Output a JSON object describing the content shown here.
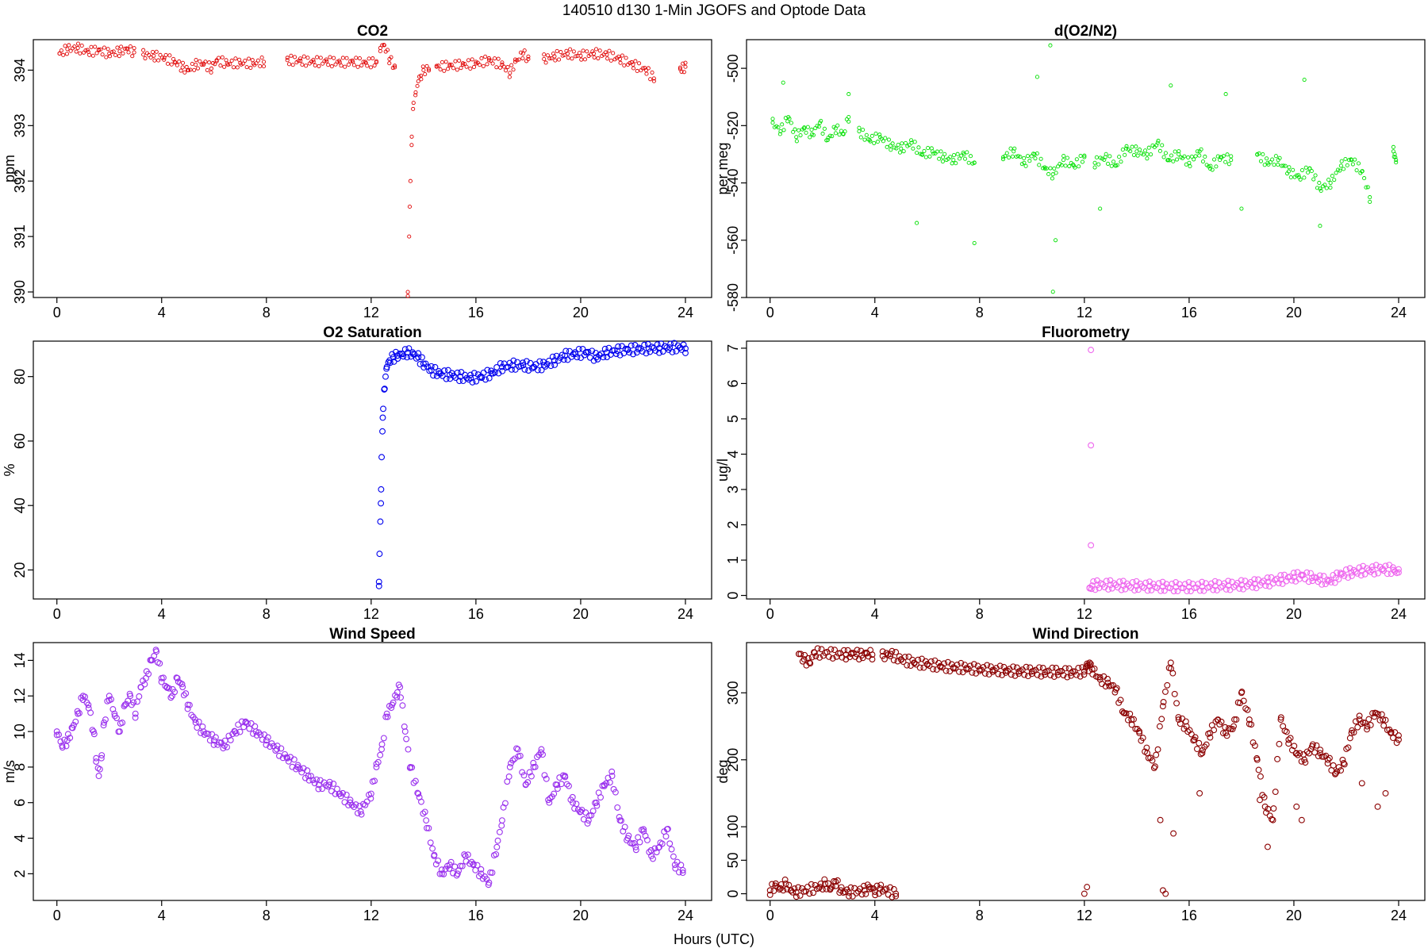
{
  "figure": {
    "title": "140510   d130   1-Min  JGOFS and Optode Data",
    "xlabel": "Hours (UTC)"
  },
  "chart_data": [
    {
      "type": "scatter",
      "title": "CO2",
      "xlabel": "",
      "ylabel": "ppm",
      "xlim": [
        -0.9,
        25
      ],
      "ylim": [
        389.9,
        394.55
      ],
      "xticks": [
        0,
        4,
        8,
        12,
        16,
        20,
        24
      ],
      "yticks": [
        390,
        391,
        392,
        393,
        394
      ],
      "color": "#e00000",
      "marker_size": "small",
      "grid": false,
      "segments": [
        {
          "x": [
            0.1,
            0.4,
            0.8,
            1.2,
            1.6,
            2.0,
            2.4,
            2.7,
            2.95
          ],
          "y": [
            394.3,
            394.38,
            394.4,
            394.33,
            394.36,
            394.3,
            394.34,
            394.38,
            394.32
          ]
        },
        {
          "x": [
            3.3,
            3.7,
            4.1,
            4.5,
            4.8,
            5.0,
            5.3,
            5.6,
            5.9,
            6.1,
            6.5,
            7.0,
            7.5,
            7.9
          ],
          "y": [
            394.28,
            394.26,
            394.22,
            394.15,
            394.05,
            394.0,
            394.1,
            394.12,
            394.03,
            394.18,
            394.12,
            394.13,
            394.12,
            394.15
          ]
        },
        {
          "x": [
            8.8,
            9.3,
            9.8,
            10.3,
            10.8,
            11.3,
            11.8,
            12.2
          ],
          "y": [
            394.18,
            394.17,
            394.15,
            394.16,
            394.14,
            394.15,
            394.13,
            394.14
          ]
        },
        {
          "x": [
            12.35,
            12.5,
            12.7,
            12.9
          ],
          "y": [
            394.4,
            394.45,
            394.2,
            394.05
          ]
        },
        {
          "x": [
            13.4,
            13.45,
            13.5,
            13.55,
            13.6,
            13.7,
            13.8,
            13.9,
            14.0,
            14.2
          ],
          "y": [
            390.0,
            391.0,
            392.0,
            392.8,
            393.3,
            393.6,
            393.8,
            393.9,
            394.0,
            394.02
          ]
        },
        {
          "x": [
            14.5,
            15.0,
            15.5,
            16.0,
            16.5,
            17.0,
            17.3,
            17.5,
            17.8,
            18.0
          ],
          "y": [
            394.06,
            394.08,
            394.1,
            394.12,
            394.18,
            394.1,
            393.95,
            394.15,
            394.3,
            394.2
          ]
        },
        {
          "x": [
            18.6,
            19.0,
            19.5,
            20.0,
            20.5,
            21.0,
            21.5,
            22.0,
            22.5,
            22.8
          ],
          "y": [
            394.2,
            394.25,
            394.3,
            394.26,
            394.3,
            394.28,
            394.2,
            394.1,
            394.0,
            393.85
          ]
        },
        {
          "x": [
            23.8,
            24.0
          ],
          "y": [
            394.02,
            394.06
          ]
        }
      ]
    },
    {
      "type": "scatter",
      "title": "d(O2/N2)",
      "xlabel": "",
      "ylabel": "per meg",
      "xlim": [
        -0.9,
        25
      ],
      "ylim": [
        -580,
        -490
      ],
      "xticks": [
        0,
        4,
        8,
        12,
        16,
        20,
        24
      ],
      "yticks": [
        -580,
        -560,
        -540,
        -520,
        -500
      ],
      "color": "#00e000",
      "marker_size": "small",
      "grid": false,
      "segments": [
        {
          "x": [
            0.1,
            0.4,
            0.7,
            1.0,
            1.3,
            1.6,
            1.9,
            2.2,
            2.5,
            2.8,
            3.0
          ],
          "y": [
            -519,
            -522,
            -517,
            -524,
            -521,
            -523,
            -519,
            -525,
            -521,
            -523,
            -517
          ]
        },
        {
          "x": [
            3.4,
            3.8,
            4.2,
            4.6,
            5.0,
            5.4,
            5.8,
            6.2,
            6.6,
            7.0,
            7.4,
            7.8
          ],
          "y": [
            -522,
            -525,
            -524,
            -527,
            -528,
            -526,
            -530,
            -529,
            -531,
            -532,
            -530,
            -533
          ]
        },
        {
          "x": [
            8.9,
            9.3,
            9.7,
            10.1,
            10.5,
            10.8,
            11.2,
            11.6,
            12.0
          ],
          "y": [
            -531,
            -529,
            -533,
            -530,
            -535,
            -537,
            -532,
            -534,
            -531
          ]
        },
        {
          "x": [
            12.4,
            12.8,
            13.2,
            13.6,
            14.0,
            14.4,
            14.8,
            15.2,
            15.6,
            16.0,
            16.4,
            16.8,
            17.2,
            17.6
          ],
          "y": [
            -533,
            -531,
            -534,
            -528,
            -529,
            -530,
            -526,
            -532,
            -530,
            -533,
            -529,
            -535,
            -531,
            -532
          ]
        },
        {
          "x": [
            18.6,
            19.0,
            19.4,
            19.8,
            20.2,
            20.6,
            21.0,
            21.4,
            21.8,
            22.2,
            22.6,
            22.9
          ],
          "y": [
            -530,
            -533,
            -532,
            -536,
            -538,
            -535,
            -542,
            -540,
            -534,
            -532,
            -536,
            -545
          ]
        },
        {
          "x": [
            23.8,
            23.9
          ],
          "y": [
            -529,
            -532
          ]
        }
      ],
      "outliers": {
        "x": [
          0.5,
          3.0,
          5.6,
          7.8,
          10.2,
          10.7,
          10.8,
          10.9,
          12.6,
          15.3,
          17.4,
          18.0,
          20.4,
          21.0
        ],
        "y": [
          -505,
          -509,
          -554,
          -561,
          -503,
          -492,
          -578,
          -560,
          -549,
          -506,
          -509,
          -549,
          -504,
          -555
        ]
      }
    },
    {
      "type": "scatter",
      "title": "O2 Saturation",
      "xlabel": "",
      "ylabel": "%",
      "xlim": [
        -0.9,
        25
      ],
      "ylim": [
        11,
        91
      ],
      "xticks": [
        0,
        4,
        8,
        12,
        16,
        20,
        24
      ],
      "yticks": [
        20,
        40,
        60,
        80
      ],
      "color": "#0000ee",
      "marker_size": "large",
      "grid": false,
      "segments": [
        {
          "x": [
            12.3,
            12.32,
            12.35,
            12.38,
            12.4,
            12.43,
            12.46,
            12.5,
            12.55,
            12.6,
            12.7,
            12.85,
            13.0,
            13.2,
            13.4,
            13.6,
            13.8,
            14.0,
            14.3,
            14.6,
            15.0,
            15.4,
            15.8,
            16.2,
            16.6,
            17.0,
            17.4,
            17.8,
            18.2,
            18.6,
            19.0,
            19.4,
            19.8,
            20.2,
            20.6,
            21.0,
            21.4,
            21.8,
            22.2,
            22.6,
            23.0,
            23.4,
            23.8,
            24.0
          ],
          "y": [
            15,
            25,
            35,
            45,
            55,
            63,
            70,
            76,
            80,
            83,
            85,
            86,
            86.5,
            87,
            87.5,
            87,
            86,
            84,
            82,
            81,
            80.5,
            80,
            79.5,
            80,
            81,
            83,
            83.5,
            83.5,
            83,
            83.5,
            85,
            86.5,
            87,
            87.5,
            86,
            87.5,
            88,
            88.3,
            88.5,
            88.7,
            88.8,
            89,
            89,
            88.7
          ]
        }
      ]
    },
    {
      "type": "scatter",
      "title": "Fluorometry",
      "xlabel": "",
      "ylabel": "ug/l",
      "xlim": [
        -0.9,
        25
      ],
      "ylim": [
        -0.1,
        7.2
      ],
      "xticks": [
        0,
        4,
        8,
        12,
        16,
        20,
        24
      ],
      "yticks": [
        0,
        1,
        2,
        3,
        4,
        5,
        6,
        7
      ],
      "color": "#ee66ee",
      "marker_size": "large",
      "grid": false,
      "segments": [
        {
          "x": [
            12.2,
            12.3,
            12.5,
            13.0,
            13.5,
            14.0,
            14.5,
            15.0,
            15.5,
            16.0,
            16.5,
            17.0,
            17.5,
            18.0,
            18.5,
            19.0,
            19.5,
            20.0,
            20.3,
            20.7,
            21.0,
            21.3,
            21.6,
            21.8,
            22.2,
            22.6,
            23.0,
            23.4,
            23.8,
            24.0
          ],
          "y": [
            0.2,
            0.28,
            0.3,
            0.3,
            0.28,
            0.27,
            0.26,
            0.25,
            0.24,
            0.24,
            0.25,
            0.27,
            0.28,
            0.3,
            0.33,
            0.38,
            0.45,
            0.52,
            0.56,
            0.5,
            0.45,
            0.4,
            0.5,
            0.6,
            0.65,
            0.7,
            0.72,
            0.75,
            0.72,
            0.65
          ]
        }
      ],
      "outliers": {
        "x": [
          12.25,
          12.25,
          12.25
        ],
        "y": [
          6.95,
          4.25,
          1.42
        ]
      }
    },
    {
      "type": "scatter",
      "title": "Wind Speed",
      "xlabel": "",
      "ylabel": "m/s",
      "xlim": [
        -0.9,
        25
      ],
      "ylim": [
        0.5,
        15
      ],
      "xticks": [
        0,
        4,
        8,
        12,
        16,
        20,
        24
      ],
      "yticks": [
        2,
        4,
        6,
        8,
        10,
        12,
        14
      ],
      "color": "#9a30ee",
      "marker_size": "large",
      "grid": false,
      "segments": [
        {
          "x": [
            0.0,
            0.2,
            0.4,
            0.6,
            0.8,
            1.0,
            1.2,
            1.4,
            1.5,
            1.6,
            1.7,
            1.8,
            2.0,
            2.2,
            2.4,
            2.6,
            2.8,
            3.0,
            3.2,
            3.4,
            3.6,
            3.8,
            4.0,
            4.2,
            4.4,
            4.6,
            4.8,
            5.0,
            5.3,
            5.6,
            6.0,
            6.4,
            6.8,
            7.2,
            7.6,
            8.0,
            8.4,
            8.8,
            9.2,
            9.6,
            10.0,
            10.4,
            10.8,
            11.2,
            11.6,
            12.0,
            12.2,
            12.4,
            12.6,
            12.8,
            13.0,
            13.1,
            13.3,
            13.5,
            13.8,
            14.1,
            14.4,
            14.7,
            15.0,
            15.3,
            15.6,
            15.9,
            16.2,
            16.5,
            16.8,
            17.0,
            17.3,
            17.6,
            17.9,
            18.2,
            18.5,
            18.8,
            19.1,
            19.4,
            19.7,
            20.0,
            20.3,
            20.6,
            20.9,
            21.2,
            21.5,
            21.8,
            22.1,
            22.4,
            22.7,
            23.0,
            23.3,
            23.6,
            23.9
          ],
          "y": [
            10,
            9.2,
            9.5,
            10.2,
            11,
            12,
            11.5,
            10,
            8.5,
            7.5,
            8.5,
            10.5,
            12,
            11,
            10,
            11.5,
            12,
            11,
            12.5,
            13,
            14,
            14.5,
            13,
            12.5,
            12,
            13,
            12.5,
            11.5,
            10.5,
            10,
            9.5,
            9.2,
            10,
            10.5,
            10,
            9.5,
            9,
            8.5,
            8,
            7.5,
            7,
            7,
            6.5,
            6,
            5.5,
            6.5,
            8,
            9,
            11,
            11.5,
            12.2,
            12.5,
            10,
            8,
            6.5,
            5,
            3,
            2,
            2.5,
            2,
            3,
            2.5,
            2,
            1.5,
            3.5,
            5,
            8,
            9,
            7,
            8,
            9,
            6,
            7,
            7.5,
            6,
            5.5,
            5,
            6,
            7,
            7.5,
            5,
            4,
            3.5,
            4.5,
            3,
            3.5,
            4.5,
            2.5,
            2.2
          ]
        }
      ]
    },
    {
      "type": "scatter",
      "title": "Wind Direction",
      "xlabel": "",
      "ylabel": "deg",
      "xlim": [
        -0.9,
        25
      ],
      "ylim": [
        -10,
        375
      ],
      "xticks": [
        0,
        4,
        8,
        12,
        16,
        20,
        24
      ],
      "yticks": [
        0,
        50,
        100,
        200,
        300
      ],
      "color": "#8b0000",
      "marker_size": "large",
      "grid": false,
      "segments": [
        {
          "x": [
            0.0,
            0.2,
            0.4,
            0.6,
            0.8,
            1.0,
            1.9,
            2.1,
            2.3,
            2.5,
            2.7,
            3.0,
            3.6,
            3.8,
            4.0,
            4.2,
            4.8
          ],
          "y": [
            5,
            12,
            8,
            15,
            5,
            2,
            10,
            15,
            8,
            18,
            5,
            2,
            5,
            10,
            3,
            8,
            0
          ]
        },
        {
          "x": [
            1.1,
            1.3,
            1.5,
            1.7,
            2.9,
            3.1,
            3.3,
            3.5,
            3.7,
            3.9
          ],
          "y": [
            358,
            350,
            345,
            360,
            357,
            358,
            358,
            356,
            359,
            357
          ]
        },
        {
          "x": [
            4.3,
            4.6,
            5.0,
            5.5,
            6.0,
            6.5,
            7.0,
            7.5,
            8.0,
            8.5,
            9.0,
            9.5,
            10.0,
            10.5,
            11.0,
            11.5,
            12.0,
            12.2
          ],
          "y": [
            355,
            358,
            350,
            345,
            343,
            340,
            338,
            337,
            335,
            334,
            333,
            332,
            332,
            331,
            331,
            330,
            332,
            345
          ]
        },
        {
          "x": [
            12.1,
            12.3,
            12.6,
            12.9,
            13.2,
            13.5,
            13.8,
            14.1,
            14.4,
            14.7,
            15.0,
            15.3,
            15.6,
            15.9,
            16.2,
            16.5,
            16.8,
            17.1,
            17.4,
            17.7,
            18.0,
            18.3,
            18.6,
            18.9,
            19.2,
            19.5,
            19.8,
            20.1,
            20.4,
            20.7,
            21.0,
            21.3,
            21.6,
            21.9,
            22.2,
            22.5,
            22.8,
            23.1,
            23.4,
            23.7,
            24.0
          ],
          "y": [
            340,
            335,
            320,
            315,
            305,
            270,
            260,
            240,
            210,
            190,
            280,
            345,
            260,
            250,
            230,
            210,
            240,
            260,
            240,
            250,
            300,
            260,
            200,
            130,
            110,
            260,
            230,
            210,
            200,
            220,
            210,
            200,
            180,
            195,
            240,
            260,
            250,
            270,
            260,
            240,
            230
          ]
        }
      ],
      "outliers": {
        "x": [
          12.0,
          12.1,
          14.9,
          15.1,
          15.0,
          15.4,
          16.4,
          18.7,
          19.0,
          20.1,
          20.3,
          22.6,
          23.2,
          23.5
        ],
        "y": [
          0,
          10,
          110,
          0,
          5,
          90,
          150,
          140,
          70,
          130,
          110,
          165,
          130,
          150
        ]
      }
    }
  ]
}
